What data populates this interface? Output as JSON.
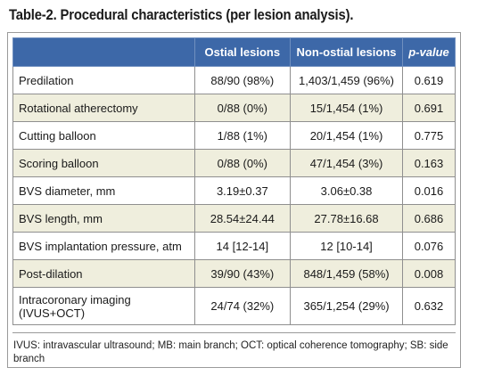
{
  "title": "Table-2. Procedural characteristics (per lesion analysis).",
  "headers": {
    "label": "",
    "ostial": "Ostial lesions",
    "nonostial": "Non-ostial lesions",
    "pvalue": "p-value"
  },
  "rows": [
    {
      "label": "Predilation",
      "ostial": "88/90 (98%)",
      "nonostial": "1,403/1,459 (96%)",
      "p": "0.619"
    },
    {
      "label": "Rotational atherectomy",
      "ostial": "0/88 (0%)",
      "nonostial": "15/1,454 (1%)",
      "p": "0.691"
    },
    {
      "label": "Cutting balloon",
      "ostial": "1/88 (1%)",
      "nonostial": "20/1,454 (1%)",
      "p": "0.775"
    },
    {
      "label": "Scoring balloon",
      "ostial": "0/88 (0%)",
      "nonostial": "47/1,454 (3%)",
      "p": "0.163"
    },
    {
      "label": "BVS diameter, mm",
      "ostial": "3.19±0.37",
      "nonostial": "3.06±0.38",
      "p": "0.016"
    },
    {
      "label": "BVS length, mm",
      "ostial": "28.54±24.44",
      "nonostial": "27.78±16.68",
      "p": "0.686"
    },
    {
      "label": "BVS implantation pressure, atm",
      "ostial": "14 [12-14]",
      "nonostial": "12 [10-14]",
      "p": "0.076"
    },
    {
      "label": "Post-dilation",
      "ostial": "39/90 (43%)",
      "nonostial": "848/1,459 (58%)",
      "p": "0.008"
    },
    {
      "label_line1": "Intracoronary imaging",
      "label_line2": "(IVUS+OCT)",
      "ostial": "24/74 (32%)",
      "nonostial": "365/1,254 (29%)",
      "p": "0.632"
    }
  ],
  "footnote": "IVUS: intravascular ultrasound; MB: main branch; OCT: optical coherence tomography; SB: side branch",
  "colors": {
    "header_bg": "#3d68a8",
    "alt_row_bg": "#efeedd"
  }
}
